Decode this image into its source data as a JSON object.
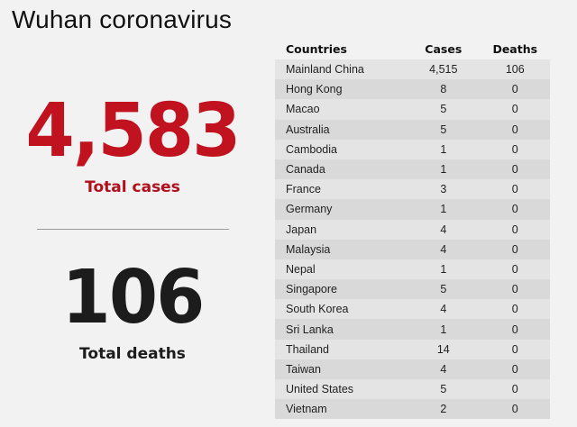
{
  "title": "Wuhan coronavirus",
  "summary": {
    "total_cases": "4,583",
    "total_cases_label": "Total cases",
    "total_deaths": "106",
    "total_deaths_label": "Total deaths"
  },
  "colors": {
    "accent_red": "#c1121f",
    "dark_text": "#1c1c1c"
  },
  "table": {
    "headers": [
      "Countries",
      "Cases",
      "Deaths"
    ],
    "rows": [
      {
        "country": "Mainland China",
        "cases": "4,515",
        "deaths": "106"
      },
      {
        "country": "Hong Kong",
        "cases": "8",
        "deaths": "0"
      },
      {
        "country": "Macao",
        "cases": "5",
        "deaths": "0"
      },
      {
        "country": "Australia",
        "cases": "5",
        "deaths": "0"
      },
      {
        "country": "Cambodia",
        "cases": "1",
        "deaths": "0"
      },
      {
        "country": "Canada",
        "cases": "1",
        "deaths": "0"
      },
      {
        "country": "France",
        "cases": "3",
        "deaths": "0"
      },
      {
        "country": "Germany",
        "cases": "1",
        "deaths": "0"
      },
      {
        "country": "Japan",
        "cases": "4",
        "deaths": "0"
      },
      {
        "country": "Malaysia",
        "cases": "4",
        "deaths": "0"
      },
      {
        "country": "Nepal",
        "cases": "1",
        "deaths": "0"
      },
      {
        "country": "Singapore",
        "cases": "5",
        "deaths": "0"
      },
      {
        "country": "South Korea",
        "cases": "4",
        "deaths": "0"
      },
      {
        "country": "Sri Lanka",
        "cases": "1",
        "deaths": "0"
      },
      {
        "country": "Thailand",
        "cases": "14",
        "deaths": "0"
      },
      {
        "country": "Taiwan",
        "cases": "4",
        "deaths": "0"
      },
      {
        "country": "United States",
        "cases": "5",
        "deaths": "0"
      },
      {
        "country": "Vietnam",
        "cases": "2",
        "deaths": "0"
      }
    ]
  }
}
